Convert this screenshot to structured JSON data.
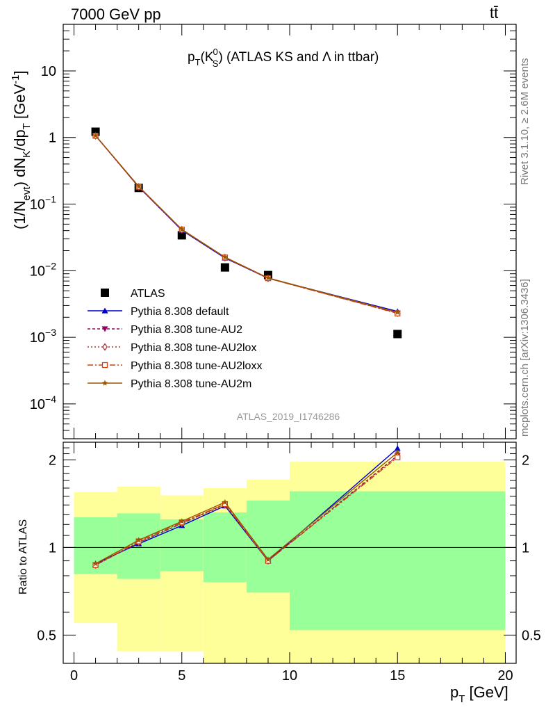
{
  "header": {
    "left": "7000 GeV pp",
    "right": "tt̄"
  },
  "side_text": {
    "rivet": "Rivet 3.1.10, ≥ 2.6M events",
    "mcplots": "mcplots.cern.ch [arXiv:1306.3436]"
  },
  "watermark": "ATLAS_2019_I1746286",
  "chart_data": [
    {
      "type": "scatter",
      "title": "pT(KS0) (ATLAS KS and Λ in ttbar)",
      "ylabel": "(1/Nevt) dNK/dpT [GeV-1]",
      "yscale": "log",
      "ylim": [
        3e-05,
        50
      ],
      "xlim": [
        -0.5,
        20.5
      ],
      "yticks": [
        "10^-4",
        "10^-3",
        "10^-2",
        "10^-1",
        "1",
        "10"
      ],
      "legend_position": "lower-left",
      "x": [
        1,
        3,
        5,
        7,
        9,
        15
      ],
      "series": [
        {
          "name": "ATLAS",
          "values": [
            1.22,
            0.175,
            0.034,
            0.0112,
            0.0086,
            0.00112
          ],
          "color": "#000000",
          "marker": "square"
        },
        {
          "name": "Pythia 8.308 default",
          "values": [
            1.07,
            0.18,
            0.0405,
            0.0155,
            0.0077,
            0.00245
          ],
          "color": "#0000cc",
          "marker": "triangle-up"
        },
        {
          "name": "Pythia 8.308 tune-AU2",
          "values": [
            1.06,
            0.181,
            0.0412,
            0.0158,
            0.0077,
            0.00232
          ],
          "color": "#990066",
          "marker": "triangle-down"
        },
        {
          "name": "Pythia 8.308 tune-AU2lox",
          "values": [
            1.06,
            0.181,
            0.0412,
            0.0157,
            0.0077,
            0.00231
          ],
          "color": "#aa3333",
          "marker": "diamond"
        },
        {
          "name": "Pythia 8.308 tune-AU2loxx",
          "values": [
            1.06,
            0.182,
            0.0415,
            0.0158,
            0.0077,
            0.00228
          ],
          "color": "#cc4411",
          "marker": "open-square"
        },
        {
          "name": "Pythia 8.308 tune-AU2m",
          "values": [
            1.07,
            0.185,
            0.0418,
            0.016,
            0.0078,
            0.00237
          ],
          "color": "#995500",
          "marker": "star"
        }
      ]
    },
    {
      "type": "line",
      "xlabel": "pT [GeV]",
      "ylabel": "Ratio to ATLAS",
      "ylim": [
        0.4,
        2.3
      ],
      "xlim": [
        -0.5,
        20.5
      ],
      "xticks": [
        0,
        5,
        10,
        15,
        20
      ],
      "yticks": [
        0.5,
        1,
        2
      ],
      "bands": {
        "edges": [
          0,
          2,
          4,
          6,
          8,
          10,
          20
        ],
        "yellow": [
          [
            0.55,
            1.55
          ],
          [
            0.44,
            1.62
          ],
          [
            0.44,
            1.51
          ],
          [
            0.38,
            1.6
          ],
          [
            0.37,
            1.71
          ],
          [
            0.37,
            1.97
          ]
        ],
        "green": [
          [
            0.81,
            1.27
          ],
          [
            0.78,
            1.31
          ],
          [
            0.83,
            1.25
          ],
          [
            0.76,
            1.32
          ],
          [
            0.7,
            1.45
          ],
          [
            0.52,
            1.56
          ]
        ],
        "yellow_color": "#ffff99",
        "green_color": "#99ff99"
      },
      "x": [
        1,
        3,
        5,
        7,
        9,
        15
      ],
      "series": [
        {
          "name": "Pythia 8.308 default",
          "values": [
            0.88,
            1.03,
            1.19,
            1.39,
            0.9,
            2.19
          ],
          "color": "#0000cc",
          "marker": "triangle-up"
        },
        {
          "name": "Pythia 8.308 tune-AU2",
          "values": [
            0.87,
            1.04,
            1.21,
            1.41,
            0.9,
            2.07
          ],
          "color": "#990066",
          "marker": "triangle-down"
        },
        {
          "name": "Pythia 8.308 tune-AU2lox",
          "values": [
            0.87,
            1.04,
            1.21,
            1.4,
            0.9,
            2.06
          ],
          "color": "#aa3333",
          "marker": "diamond"
        },
        {
          "name": "Pythia 8.308 tune-AU2loxx",
          "values": [
            0.87,
            1.05,
            1.22,
            1.41,
            0.9,
            2.04
          ],
          "color": "#cc4411",
          "marker": "open-square"
        },
        {
          "name": "Pythia 8.308 tune-AU2m",
          "values": [
            0.88,
            1.06,
            1.23,
            1.43,
            0.91,
            2.12
          ],
          "color": "#995500",
          "marker": "star"
        }
      ]
    }
  ]
}
